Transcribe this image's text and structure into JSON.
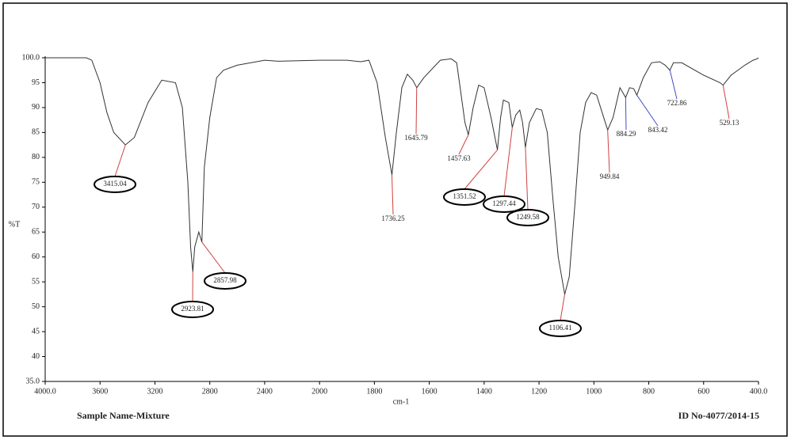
{
  "chart_data": {
    "type": "line",
    "ylabel": "%T",
    "xlabel": "cm-1",
    "footer_left": "Sample Name-Mixture",
    "footer_right": "ID No-4077/2014-15",
    "color": "#333333",
    "xlim": [
      4000,
      400
    ],
    "ylim": [
      35,
      100
    ],
    "xticks": [
      {
        "value": 4000,
        "label": "4000.0"
      },
      3600,
      3200,
      2800,
      2400,
      2000,
      1800,
      1600,
      1400,
      1200,
      1000,
      800,
      600,
      {
        "value": 400,
        "label": "400.0"
      }
    ],
    "yticks": [
      {
        "value": 35,
        "label": "35.0"
      },
      40,
      45,
      50,
      55,
      60,
      65,
      70,
      75,
      80,
      85,
      90,
      95,
      {
        "value": 100,
        "label": "100.0"
      }
    ],
    "x": [
      4000,
      3700,
      3660,
      3600,
      3550,
      3500,
      3415.04,
      3350,
      3250,
      3150,
      3050,
      3000,
      2960,
      2940,
      2923.81,
      2910,
      2880,
      2857.98,
      2840,
      2800,
      2750,
      2700,
      2600,
      2400,
      2300,
      2000,
      1900,
      1850,
      1820,
      1790,
      1760,
      1736.25,
      1720,
      1700,
      1680,
      1660,
      1645.79,
      1620,
      1560,
      1520,
      1500,
      1490,
      1470,
      1457.63,
      1440,
      1420,
      1400,
      1375,
      1351.52,
      1340,
      1330,
      1310,
      1297.44,
      1285,
      1270,
      1260,
      1249.58,
      1235,
      1210,
      1190,
      1170,
      1150,
      1130,
      1106.41,
      1090,
      1070,
      1050,
      1030,
      1010,
      990,
      970,
      949.84,
      930,
      905,
      884.29,
      870,
      855,
      843.42,
      820,
      790,
      760,
      740,
      722.86,
      710,
      680,
      600,
      540,
      529.13,
      500,
      450,
      420,
      405,
      400
    ],
    "values": [
      100,
      100,
      99.5,
      95,
      89,
      85,
      82.5,
      84,
      91,
      95.5,
      95,
      90,
      75,
      62,
      57,
      62,
      65,
      63,
      78,
      88,
      96,
      97.5,
      98.5,
      99.5,
      99.3,
      99.5,
      99.5,
      99.2,
      99.5,
      95,
      84,
      76.5,
      85,
      94,
      96.7,
      95.5,
      94,
      96,
      99.5,
      99.8,
      99,
      95,
      87,
      84.5,
      90,
      94.5,
      94,
      88,
      81.5,
      88,
      91.5,
      91,
      86,
      88.5,
      89.5,
      87,
      82,
      87,
      89.8,
      89.5,
      85,
      72,
      60,
      52.5,
      56,
      70,
      85,
      91,
      93,
      92.5,
      89,
      85.5,
      88,
      94,
      92,
      94,
      93.8,
      92.5,
      96,
      99,
      99.2,
      98.5,
      97.5,
      99,
      99,
      96.5,
      95,
      94.5,
      96.5,
      98.5,
      99.5,
      99.8,
      100
    ],
    "peaks": [
      {
        "x": 3415.04,
        "y": 82.5,
        "circled": true,
        "line_color": "#d04040"
      },
      {
        "x": 2923.81,
        "y": 57,
        "circled": true,
        "line_color": "#d04040"
      },
      {
        "x": 2857.98,
        "y": 63,
        "circled": true,
        "line_color": "#d04040"
      },
      {
        "x": 1736.25,
        "y": 76.5,
        "circled": false,
        "line_color": "#d04040"
      },
      {
        "x": 1645.79,
        "y": 94,
        "circled": false,
        "line_color": "#d04040"
      },
      {
        "x": 1457.63,
        "y": 84.5,
        "circled": false,
        "line_color": "#d04040"
      },
      {
        "x": 1351.52,
        "y": 81.5,
        "circled": true,
        "line_color": "#d04040"
      },
      {
        "x": 1297.44,
        "y": 86,
        "circled": true,
        "line_color": "#d04040"
      },
      {
        "x": 1249.58,
        "y": 82,
        "circled": true,
        "line_color": "#d04040"
      },
      {
        "x": 1106.41,
        "y": 52.5,
        "circled": true,
        "line_color": "#d04040"
      },
      {
        "x": 949.84,
        "y": 85.5,
        "circled": false,
        "line_color": "#d04040"
      },
      {
        "x": 884.29,
        "y": 92,
        "circled": false,
        "line_color": "#4050c0"
      },
      {
        "x": 843.42,
        "y": 92.5,
        "circled": false,
        "line_color": "#4050c0"
      },
      {
        "x": 722.86,
        "y": 97.5,
        "circled": false,
        "line_color": "#4050c0"
      },
      {
        "x": 529.13,
        "y": 94.5,
        "circled": false,
        "line_color": "#d04040"
      }
    ]
  }
}
